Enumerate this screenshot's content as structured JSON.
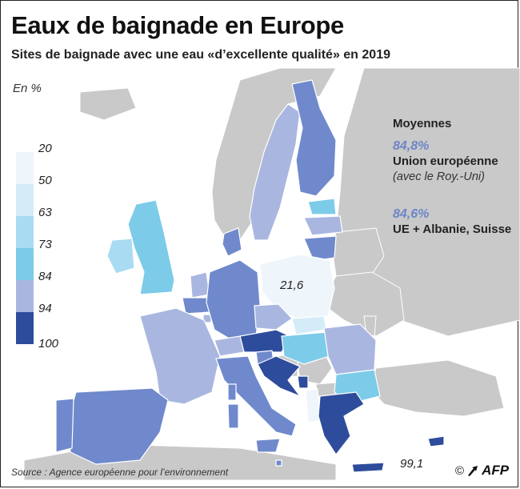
{
  "title": "Eaux de baignade en Europe",
  "subtitle": "Sites de baignade avec une eau «d’excellente qualité» en 2019",
  "unit_label": "En %",
  "legend": {
    "thresholds": [
      "20",
      "50",
      "63",
      "73",
      "84",
      "94",
      "100"
    ],
    "colors": [
      "#eef5fb",
      "#d4ecf8",
      "#a9dcf2",
      "#7ccbe9",
      "#a9b7e0",
      "#6f89cc",
      "#2e4c9c"
    ]
  },
  "averages": {
    "header": "Moyennes",
    "eu": {
      "value": "84,8%",
      "name": "Union européenne",
      "note": "(avec le Roy.-Uni)"
    },
    "extended": {
      "value": "84,6%",
      "name": "UE + Albanie, Suisse"
    }
  },
  "map_labels": {
    "poland": "21,6",
    "cyprus": "99,1"
  },
  "source": "Source : Agence européenne pour l’environnement",
  "credit": {
    "copyright": "©",
    "agency": "AFP"
  },
  "colors": {
    "nodata": "#c9c9c9",
    "sea": "#ffffff",
    "border": "#ffffff"
  }
}
